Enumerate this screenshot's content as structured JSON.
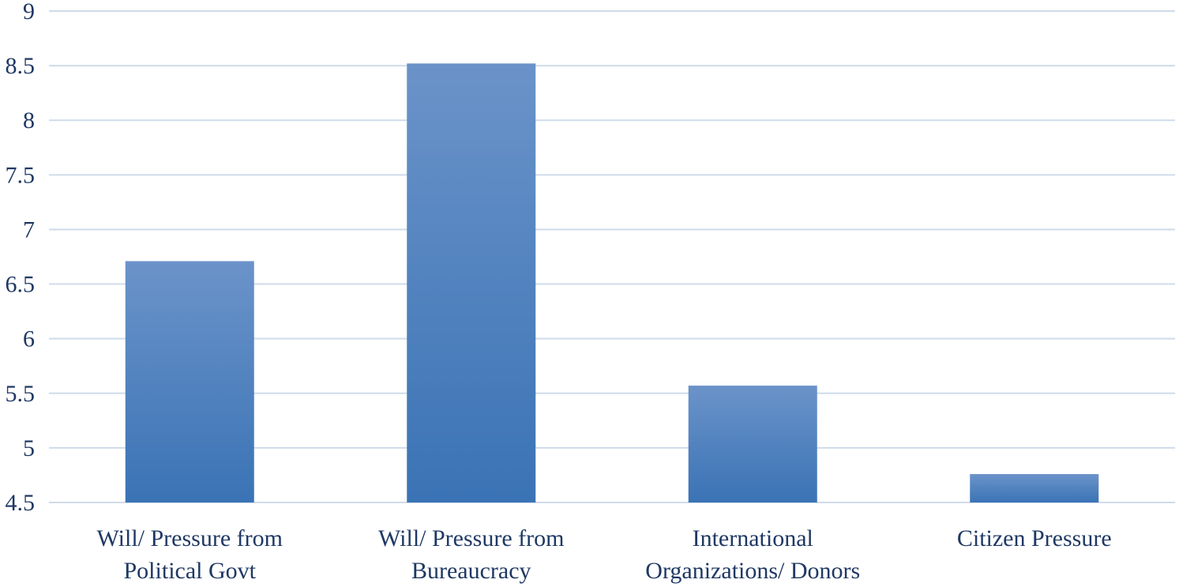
{
  "chart_data": {
    "type": "bar",
    "categories": [
      [
        "Will/ Pressure from",
        "Political Govt"
      ],
      [
        "Will/ Pressure from",
        "Bureaucracy"
      ],
      [
        "International",
        "Organizations/ Donors"
      ],
      [
        "Citizen Pressure"
      ]
    ],
    "values": [
      6.71,
      8.52,
      5.57,
      4.76
    ],
    "ylim": [
      4.5,
      9
    ],
    "yticks": [
      "9",
      "8.5",
      "8",
      "7.5",
      "7",
      "6.5",
      "6",
      "5.5",
      "5",
      "4.5"
    ],
    "grid": true,
    "colors": {
      "bar_top": "#6b93c9",
      "bar_bottom": "#3a73b5",
      "grid": "#cfdbea",
      "text": "#1f3864"
    }
  }
}
